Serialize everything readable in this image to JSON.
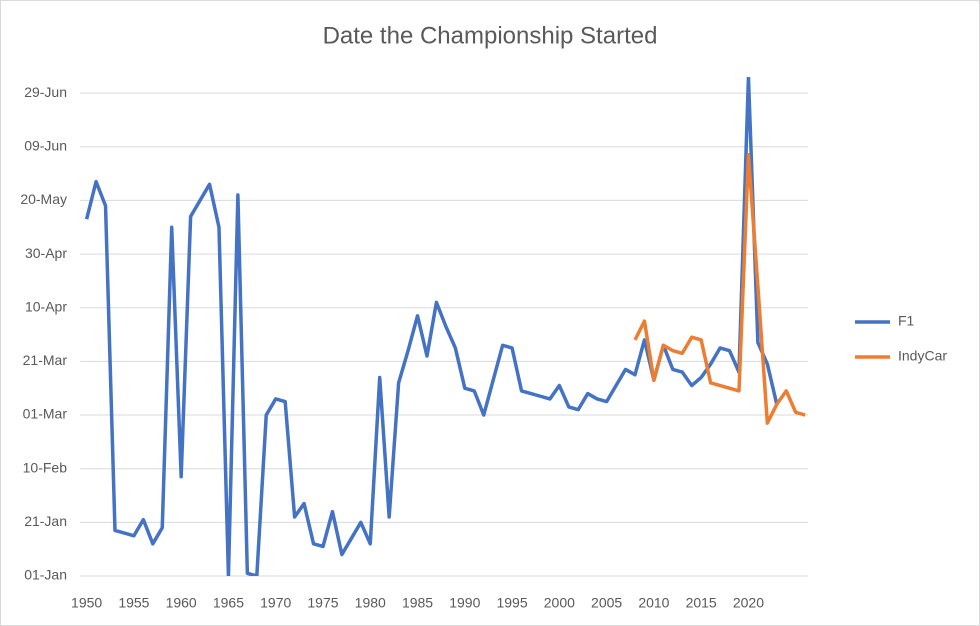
{
  "chart_data": {
    "type": "line",
    "title": "Date the Championship Started",
    "x": [
      1950,
      1951,
      1952,
      1953,
      1954,
      1955,
      1956,
      1957,
      1958,
      1959,
      1960,
      1961,
      1962,
      1963,
      1964,
      1965,
      1966,
      1967,
      1968,
      1969,
      1970,
      1971,
      1972,
      1973,
      1974,
      1975,
      1976,
      1977,
      1978,
      1979,
      1980,
      1981,
      1982,
      1983,
      1984,
      1985,
      1986,
      1987,
      1988,
      1989,
      1990,
      1991,
      1992,
      1993,
      1994,
      1995,
      1996,
      1997,
      1998,
      1999,
      2000,
      2001,
      2002,
      2003,
      2004,
      2005,
      2006,
      2007,
      2008,
      2009,
      2010,
      2011,
      2012,
      2013,
      2014,
      2015,
      2016,
      2017,
      2018,
      2019,
      2020,
      2021,
      2022,
      2023,
      2024,
      2025,
      2026
    ],
    "series": [
      {
        "name": "F1",
        "color": "#4472c4",
        "values": [
          134,
          148,
          139,
          18,
          17,
          16,
          22,
          13,
          19,
          131,
          38,
          135,
          141,
          147,
          131,
          1,
          143,
          2,
          1,
          61,
          67,
          66,
          23,
          28,
          13,
          12,
          25,
          9,
          15,
          21,
          13,
          75,
          23,
          73,
          85,
          98,
          83,
          103,
          94,
          86,
          71,
          70,
          61,
          74,
          87,
          86,
          70,
          69,
          68,
          67,
          72,
          64,
          63,
          69,
          67,
          66,
          72,
          78,
          76,
          89,
          74,
          87,
          78,
          77,
          72,
          75,
          80,
          86,
          85,
          77,
          187,
          88,
          80,
          65,
          null,
          null,
          null
        ]
      },
      {
        "name": "IndyCar",
        "color": "#ed7d31",
        "values": [
          null,
          null,
          null,
          null,
          null,
          null,
          null,
          null,
          null,
          null,
          null,
          null,
          null,
          null,
          null,
          null,
          null,
          null,
          null,
          null,
          null,
          null,
          null,
          null,
          null,
          null,
          null,
          null,
          null,
          null,
          null,
          null,
          null,
          null,
          null,
          null,
          null,
          null,
          null,
          null,
          null,
          null,
          null,
          null,
          null,
          null,
          null,
          null,
          null,
          null,
          null,
          null,
          null,
          null,
          null,
          null,
          null,
          null,
          89,
          96,
          74,
          87,
          85,
          84,
          90,
          89,
          73,
          72,
          71,
          70,
          158,
          109,
          58,
          65,
          70,
          62,
          61
        ]
      }
    ],
    "xlim": [
      1949.3,
      2026.3
    ],
    "xticks": [
      1950,
      1955,
      1960,
      1965,
      1970,
      1975,
      1980,
      1985,
      1990,
      1995,
      2000,
      2005,
      2010,
      2015,
      2020
    ],
    "ylim": [
      1,
      187
    ],
    "yticks": [
      {
        "value": 1,
        "label": "01-Jan"
      },
      {
        "value": 21,
        "label": "21-Jan"
      },
      {
        "value": 41,
        "label": "10-Feb"
      },
      {
        "value": 61,
        "label": "01-Mar"
      },
      {
        "value": 81,
        "label": "21-Mar"
      },
      {
        "value": 101,
        "label": "10-Apr"
      },
      {
        "value": 121,
        "label": "30-Apr"
      },
      {
        "value": 141,
        "label": "20-May"
      },
      {
        "value": 161,
        "label": "09-Jun"
      },
      {
        "value": 181,
        "label": "29-Jun"
      }
    ],
    "grid": true,
    "legend": "right"
  }
}
